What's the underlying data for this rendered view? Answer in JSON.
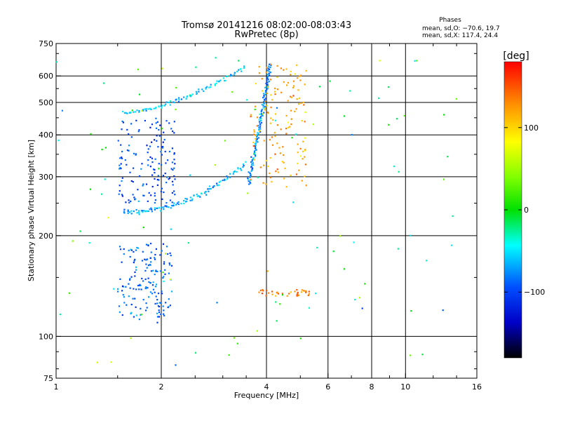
{
  "chart_data": {
    "type": "scatter",
    "title": "Tromsø 20141216 08:02:00-08:03:43",
    "subtitle": "RwPretec (8p)",
    "xlabel": "Frequency [MHz]",
    "ylabel": "Stationary phase Virtual Height [km]",
    "xscale": "log",
    "yscale": "log",
    "xlim": [
      1,
      16
    ],
    "ylim": [
      75,
      750
    ],
    "x_ticks": [
      1,
      2,
      4,
      6,
      8,
      10,
      16
    ],
    "x_tick_labels": [
      "1",
      "2",
      "4",
      "6",
      "8",
      "10",
      "16"
    ],
    "x_gridlines": [
      2,
      4,
      6,
      8,
      10
    ],
    "y_ticks": [
      75,
      100,
      200,
      300,
      400,
      500,
      600,
      750
    ],
    "y_tick_labels": [
      "75",
      "100",
      "200",
      "300",
      "400",
      "500",
      "600",
      "750"
    ],
    "y_gridlines": [
      100,
      200,
      300,
      400,
      500,
      600
    ],
    "grid": true,
    "phases": {
      "title": "Phases",
      "line_o": "mean, sd,O: −70.6, 19.7",
      "line_x": "mean, sd,X: 117.4, 24.4"
    },
    "colorbar": {
      "label": "[deg]",
      "range": [
        -180,
        180
      ],
      "ticks": [
        100,
        0,
        -100
      ],
      "tick_labels": [
        "100",
        "0",
        "−100"
      ]
    },
    "series": [
      {
        "name": "F-layer O-mode upper trace",
        "phase_deg": -60,
        "x_range": [
          1.55,
          3.5
        ],
        "height_range": [
          465,
          640
        ],
        "points": 90
      },
      {
        "name": "F-layer O-mode lower trace",
        "phase_deg": -70,
        "x_range": [
          1.55,
          3.5
        ],
        "height_range": [
          235,
          330
        ],
        "points": 110
      },
      {
        "name": "F-layer O-mode steep rise near critical frequency",
        "phase_deg": -80,
        "x_range": [
          3.55,
          4.1
        ],
        "height_range": [
          285,
          650
        ],
        "points": 120
      },
      {
        "name": "F-layer X-mode trace",
        "phase_deg": 120,
        "x_range": [
          3.6,
          5.2
        ],
        "height_range": [
          280,
          650
        ],
        "points": 140
      },
      {
        "name": "F-layer diffuse echoes",
        "phase_deg": -100,
        "x_range": [
          1.5,
          2.2
        ],
        "height_range": [
          250,
          450
        ],
        "points": 150
      },
      {
        "name": "E-layer echoes",
        "phase_deg": -90,
        "x_range": [
          1.5,
          2.15
        ],
        "height_range": [
          110,
          190
        ],
        "points": 160
      },
      {
        "name": "Sporadic E band at ~135 km",
        "phase_deg": 140,
        "x_range": [
          3.8,
          5.3
        ],
        "height_range": [
          132,
          138
        ],
        "points": 35
      },
      {
        "name": "Scattered noise",
        "phase_deg": 0,
        "x_range": [
          1.0,
          14.0
        ],
        "height_range": [
          80,
          700
        ],
        "points": 110
      }
    ]
  }
}
